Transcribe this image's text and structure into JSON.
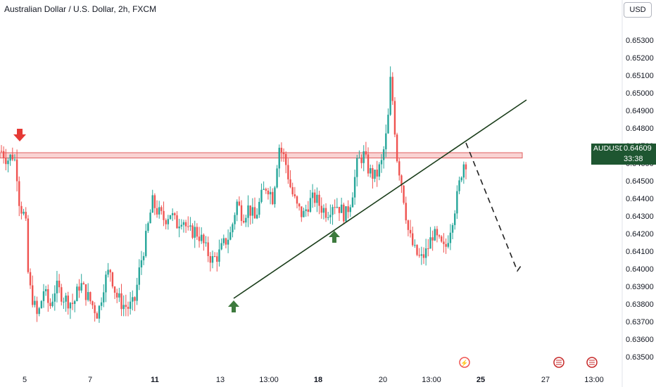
{
  "chart_data": {
    "type": "candlestick",
    "title": "Australian Dollar / U.S. Dollar, 2h, FXCM",
    "symbol": "AUDUSD",
    "currency": "USD",
    "last_price": "0.64609",
    "countdown": "33:38",
    "ylim": [
      0.635,
      0.654
    ],
    "y_ticks": [
      "0.65300",
      "0.65200",
      "0.65100",
      "0.65000",
      "0.64900",
      "0.64800",
      "0.64700",
      "0.64600",
      "0.64500",
      "0.64400",
      "0.64300",
      "0.64200",
      "0.64100",
      "0.64000",
      "0.63900",
      "0.63800",
      "0.63700",
      "0.63600",
      "0.63500"
    ],
    "x_ticks": [
      {
        "label": "5",
        "bold": false
      },
      {
        "label": "7",
        "bold": false
      },
      {
        "label": "11",
        "bold": true
      },
      {
        "label": "13",
        "bold": false
      },
      {
        "label": "13:00",
        "bold": false
      },
      {
        "label": "18",
        "bold": true
      },
      {
        "label": "20",
        "bold": false
      },
      {
        "label": "13:00",
        "bold": false
      },
      {
        "label": "25",
        "bold": true
      },
      {
        "label": "27",
        "bold": false
      },
      {
        "label": "13:00",
        "bold": false
      }
    ],
    "price_path": [
      [
        0,
        0.6467
      ],
      [
        2,
        0.6462
      ],
      [
        4,
        0.6465
      ],
      [
        5,
        0.6457
      ],
      [
        6,
        0.6437
      ],
      [
        8,
        0.6428
      ],
      [
        9,
        0.6392
      ],
      [
        12,
        0.6372
      ],
      [
        14,
        0.6388
      ],
      [
        16,
        0.6378
      ],
      [
        18,
        0.639
      ],
      [
        21,
        0.6383
      ],
      [
        24,
        0.638
      ],
      [
        26,
        0.6392
      ],
      [
        28,
        0.6386
      ],
      [
        30,
        0.638
      ],
      [
        32,
        0.6374
      ],
      [
        34,
        0.6392
      ],
      [
        36,
        0.64
      ],
      [
        38,
        0.6385
      ],
      [
        40,
        0.638
      ],
      [
        42,
        0.6378
      ],
      [
        44,
        0.638
      ],
      [
        46,
        0.6402
      ],
      [
        48,
        0.6418
      ],
      [
        50,
        0.6438
      ],
      [
        52,
        0.6432
      ],
      [
        54,
        0.6428
      ],
      [
        56,
        0.6432
      ],
      [
        58,
        0.6425
      ],
      [
        60,
        0.643
      ],
      [
        62,
        0.642
      ],
      [
        64,
        0.6422
      ],
      [
        66,
        0.6418
      ],
      [
        68,
        0.641
      ],
      [
        70,
        0.6405
      ],
      [
        72,
        0.6408
      ],
      [
        74,
        0.6415
      ],
      [
        76,
        0.642
      ],
      [
        78,
        0.6438
      ],
      [
        80,
        0.643
      ],
      [
        82,
        0.6435
      ],
      [
        84,
        0.6428
      ],
      [
        86,
        0.644
      ],
      [
        88,
        0.6448
      ],
      [
        90,
        0.644
      ],
      [
        92,
        0.647
      ],
      [
        94,
        0.6462
      ],
      [
        96,
        0.6445
      ],
      [
        98,
        0.6435
      ],
      [
        100,
        0.643
      ],
      [
        102,
        0.6438
      ],
      [
        104,
        0.644
      ],
      [
        106,
        0.6435
      ],
      [
        108,
        0.6432
      ],
      [
        110,
        0.6438
      ],
      [
        112,
        0.6435
      ],
      [
        114,
        0.643
      ],
      [
        116,
        0.644
      ],
      [
        118,
        0.646
      ],
      [
        120,
        0.6465
      ],
      [
        122,
        0.6455
      ],
      [
        124,
        0.6452
      ],
      [
        126,
        0.646
      ],
      [
        128,
        0.648
      ],
      [
        129,
        0.6508
      ],
      [
        130,
        0.649
      ],
      [
        131,
        0.6465
      ],
      [
        133,
        0.6445
      ],
      [
        135,
        0.642
      ],
      [
        137,
        0.641
      ],
      [
        139,
        0.6405
      ],
      [
        141,
        0.641
      ],
      [
        143,
        0.642
      ],
      [
        145,
        0.6415
      ],
      [
        147,
        0.641
      ],
      [
        149,
        0.6425
      ],
      [
        151,
        0.644
      ],
      [
        153,
        0.646
      ],
      [
        154,
        0.6461
      ]
    ],
    "resistance_zone": [
      0.6463,
      0.6466
    ],
    "trendline": {
      "from": [
        0.6381
      ],
      "to": [
        0.6488
      ]
    },
    "projection": {
      "from": 0.6461,
      "to": 0.6395
    },
    "markers": [
      {
        "type": "sell-arrow",
        "price": 0.647
      },
      {
        "type": "buy-arrow",
        "price": 0.6378
      },
      {
        "type": "buy-arrow",
        "price": 0.641
      }
    ],
    "colors": {
      "up": "#26a69a",
      "down": "#ef5350",
      "zone": "#f5b5b5",
      "trend": "#1a3d1a",
      "label_bg": "#1e5631"
    }
  }
}
